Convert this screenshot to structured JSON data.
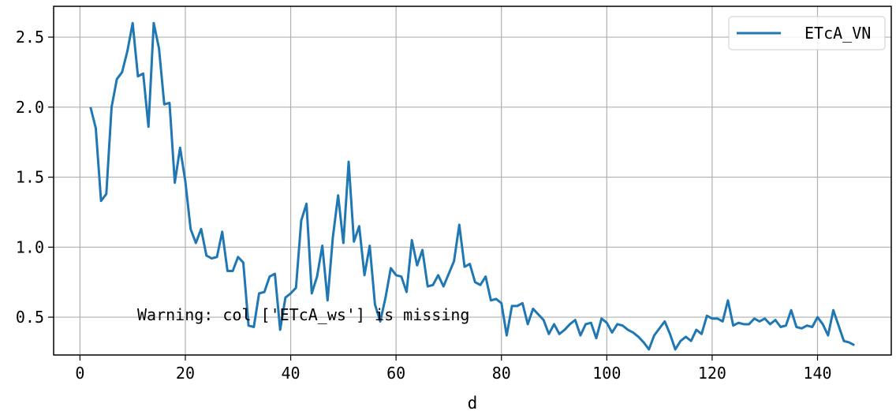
{
  "chart_data": {
    "type": "line",
    "title": "",
    "xlabel": "d",
    "ylabel": "",
    "xlim": [
      -5,
      154
    ],
    "ylim": [
      0.23,
      2.72
    ],
    "xticks": [
      0,
      20,
      40,
      60,
      80,
      100,
      120,
      140
    ],
    "yticks": [
      0.5,
      1.0,
      1.5,
      2.0,
      2.5
    ],
    "xtick_labels": [
      "0",
      "20",
      "40",
      "60",
      "80",
      "100",
      "120",
      "140"
    ],
    "ytick_labels": [
      "0.5",
      "1.0",
      "1.5",
      "2.0",
      "2.5"
    ],
    "grid": true,
    "legend_position": "top-right",
    "annotation": "Warning: col ['ETcA_ws'] is missing",
    "series": [
      {
        "name": "ETcA_VN",
        "color": "#1f77b4",
        "x": [
          2,
          3,
          4,
          5,
          6,
          7,
          8,
          9,
          10,
          11,
          12,
          13,
          14,
          15,
          16,
          17,
          18,
          19,
          20,
          21,
          22,
          23,
          24,
          25,
          26,
          27,
          28,
          29,
          30,
          31,
          32,
          33,
          34,
          35,
          36,
          37,
          38,
          39,
          40,
          41,
          42,
          43,
          44,
          45,
          46,
          47,
          48,
          49,
          50,
          51,
          52,
          53,
          54,
          55,
          56,
          57,
          58,
          59,
          60,
          61,
          62,
          63,
          64,
          65,
          66,
          67,
          68,
          69,
          70,
          71,
          72,
          73,
          74,
          75,
          76,
          77,
          78,
          79,
          80,
          81,
          82,
          83,
          84,
          85,
          86,
          87,
          88,
          89,
          90,
          91,
          92,
          93,
          94,
          95,
          96,
          97,
          98,
          99,
          100,
          101,
          102,
          103,
          104,
          105,
          106,
          107,
          108,
          109,
          110,
          111,
          112,
          113,
          114,
          115,
          116,
          117,
          118,
          119,
          120,
          121,
          122,
          123,
          124,
          125,
          126,
          127,
          128,
          129,
          130,
          131,
          132,
          133,
          134,
          135,
          136,
          137,
          138,
          139,
          140,
          141,
          142,
          143,
          144,
          145,
          146,
          147
        ],
        "y": [
          2.0,
          1.85,
          1.33,
          1.38,
          2.0,
          2.2,
          2.25,
          2.4,
          2.6,
          2.22,
          2.24,
          1.86,
          2.6,
          2.42,
          2.02,
          2.03,
          1.46,
          1.71,
          1.47,
          1.13,
          1.03,
          1.13,
          0.94,
          0.92,
          0.93,
          1.11,
          0.83,
          0.83,
          0.93,
          0.89,
          0.44,
          0.43,
          0.67,
          0.68,
          0.79,
          0.81,
          0.41,
          0.64,
          0.67,
          0.71,
          1.19,
          1.31,
          0.67,
          0.79,
          1.01,
          0.62,
          1.07,
          1.37,
          1.03,
          1.61,
          1.04,
          1.15,
          0.8,
          1.01,
          0.59,
          0.47,
          0.64,
          0.85,
          0.8,
          0.79,
          0.68,
          1.05,
          0.87,
          0.98,
          0.72,
          0.73,
          0.8,
          0.72,
          0.81,
          0.9,
          1.16,
          0.86,
          0.88,
          0.75,
          0.73,
          0.79,
          0.62,
          0.63,
          0.6,
          0.37,
          0.58,
          0.58,
          0.6,
          0.45,
          0.56,
          0.52,
          0.48,
          0.38,
          0.45,
          0.38,
          0.41,
          0.45,
          0.48,
          0.37,
          0.45,
          0.46,
          0.35,
          0.49,
          0.46,
          0.39,
          0.45,
          0.44,
          0.41,
          0.39,
          0.36,
          0.32,
          0.27,
          0.37,
          0.42,
          0.47,
          0.38,
          0.27,
          0.33,
          0.36,
          0.33,
          0.41,
          0.38,
          0.51,
          0.49,
          0.49,
          0.47,
          0.62,
          0.44,
          0.46,
          0.45,
          0.45,
          0.49,
          0.47,
          0.49,
          0.45,
          0.48,
          0.43,
          0.44,
          0.55,
          0.43,
          0.42,
          0.44,
          0.43,
          0.5,
          0.45,
          0.37,
          0.55,
          0.44,
          0.33,
          0.32,
          0.3
        ]
      }
    ]
  }
}
